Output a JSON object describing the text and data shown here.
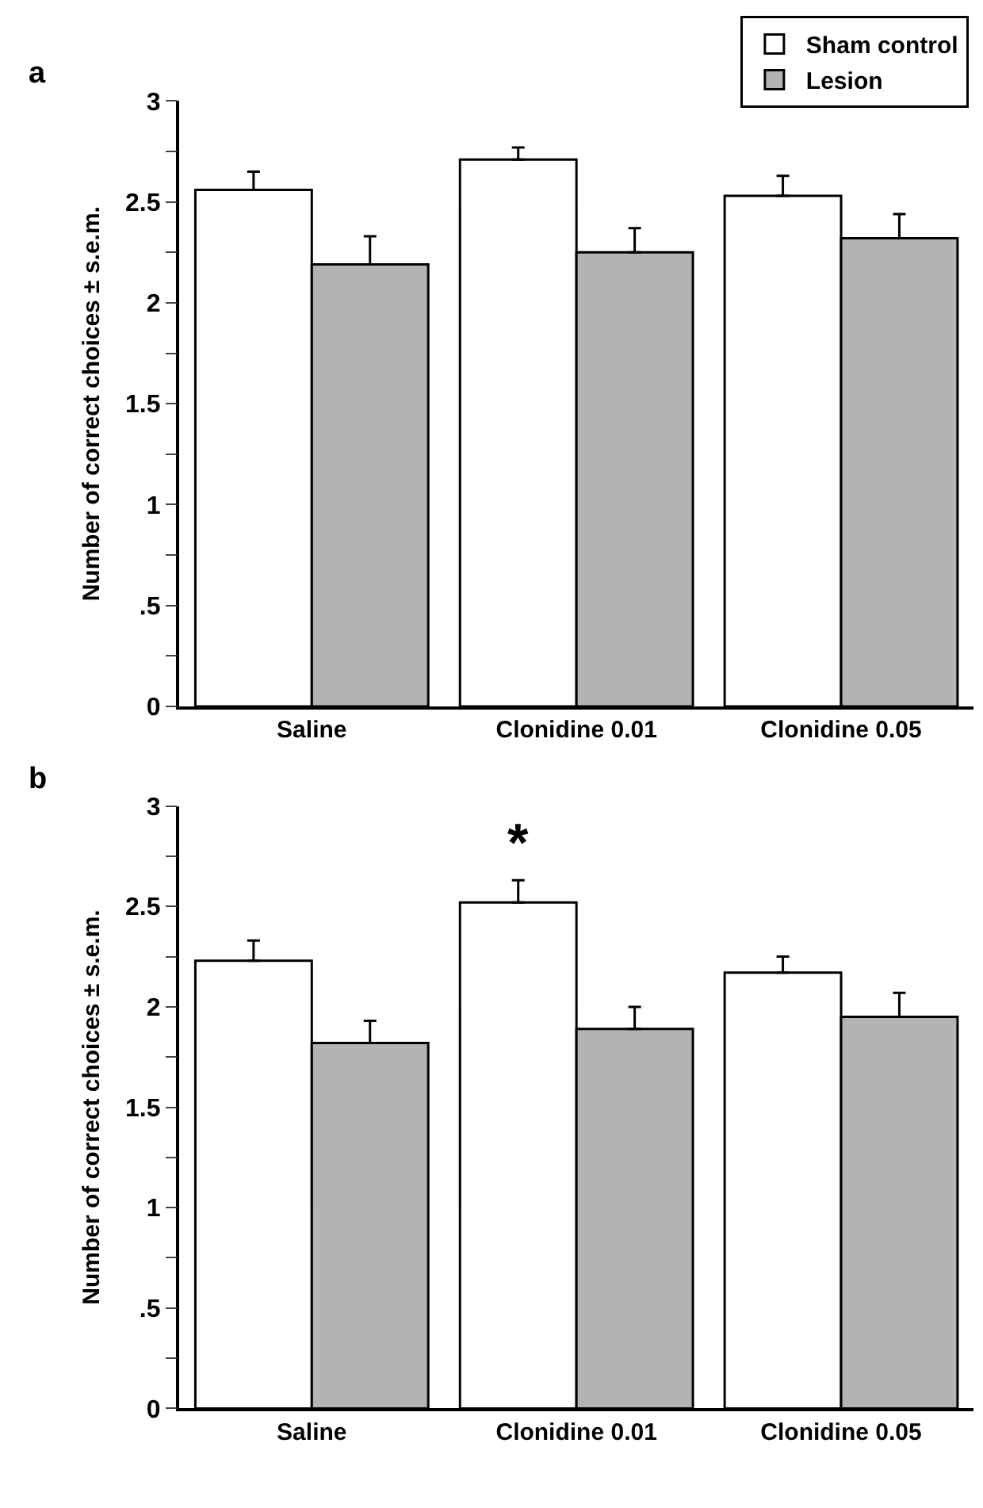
{
  "chart_data": [
    {
      "type": "bar",
      "title": "a",
      "ylabel": "Number of correct choices ± s.e.m.",
      "categories": [
        "Saline",
        "Clonidine 0.01",
        "Clonidine 0.05"
      ],
      "series": [
        {
          "name": "Sham control",
          "color": "#ffffff",
          "values": [
            2.56,
            2.71,
            2.53
          ],
          "errors": [
            [
              2.56,
              2.65
            ],
            [
              2.71,
              2.77
            ],
            [
              2.53,
              2.63
            ]
          ]
        },
        {
          "name": "Lesion",
          "color": "#b3b3b3",
          "values": [
            2.19,
            2.25,
            2.32
          ],
          "errors": [
            [
              2.19,
              2.33
            ],
            [
              2.25,
              2.37
            ],
            [
              2.32,
              2.44
            ]
          ]
        }
      ],
      "ylim": [
        0,
        3
      ],
      "yticks": [
        0,
        {
          "value": 0.25,
          "label": null
        },
        {
          "value": 0.5,
          "label": ".5"
        },
        {
          "value": 0.75,
          "label": null
        },
        1,
        {
          "value": 1.25,
          "label": null
        },
        1.5,
        {
          "value": 1.75,
          "label": null
        },
        2,
        {
          "value": 2.25,
          "label": null
        },
        2.5,
        {
          "value": 2.75,
          "label": null
        },
        3
      ],
      "legend": "top right"
    },
    {
      "type": "bar",
      "title": "b",
      "ylabel": "Number of correct choices ± s.e.m.",
      "categories": [
        "Saline",
        "Clonidine 0.01",
        "Clonidine 0.05"
      ],
      "series": [
        {
          "color": "#ffffff",
          "values": [
            2.23,
            2.52,
            2.17
          ],
          "errors": [
            [
              2.23,
              2.33
            ],
            [
              2.52,
              2.63
            ],
            [
              2.17,
              2.25
            ]
          ]
        },
        {
          "color": "#b3b3b3",
          "values": [
            1.82,
            1.89,
            1.95
          ],
          "errors": [
            [
              1.82,
              1.93
            ],
            [
              1.89,
              2.0
            ],
            [
              1.95,
              2.07
            ]
          ]
        }
      ],
      "ylim": [
        0,
        3
      ],
      "yticks": [
        0,
        {
          "value": 0.25,
          "label": null
        },
        {
          "value": 0.5,
          "label": ".5"
        },
        {
          "value": 0.75,
          "label": null
        },
        1,
        {
          "value": 1.25,
          "label": null
        },
        1.5,
        {
          "value": 1.75,
          "label": null
        },
        2,
        {
          "value": 2.25,
          "label": null
        },
        2.5,
        {
          "value": 2.75,
          "label": null
        },
        3
      ],
      "annotations": [
        {
          "text": "*",
          "x": "Clonidine 0.01",
          "y": 2.52
        }
      ],
      "legend": false
    }
  ]
}
